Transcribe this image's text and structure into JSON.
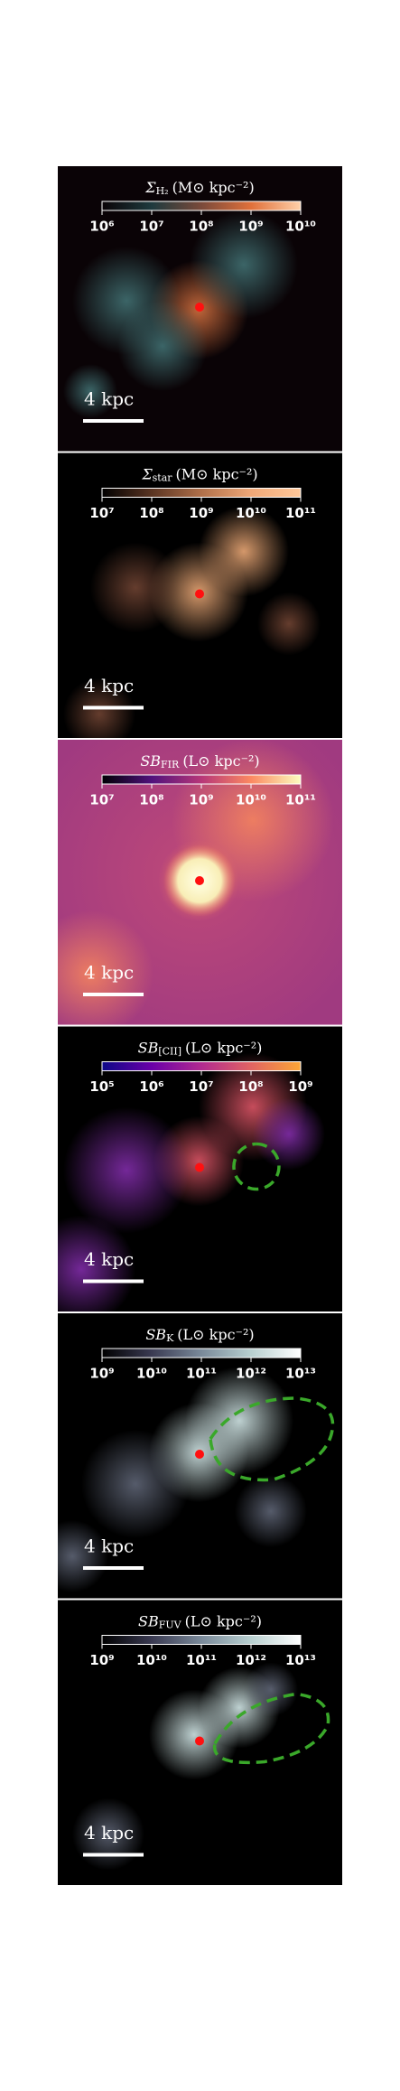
{
  "panels": [
    {
      "symbol": "Σ",
      "sub": "H₂",
      "unit": "(M⊙ kpc⁻²)",
      "ticks": [
        "10⁶",
        "10⁷",
        "10⁸",
        "10⁹",
        "10¹⁰"
      ],
      "scale": "4 kpc"
    },
    {
      "symbol": "Σ",
      "sub": "star",
      "unit": "(M⊙ kpc⁻²)",
      "ticks": [
        "10⁷",
        "10⁸",
        "10⁹",
        "10¹⁰",
        "10¹¹"
      ],
      "scale": "4 kpc"
    },
    {
      "symbol": "SB",
      "sub": "FIR",
      "unit": "(L⊙ kpc⁻²)",
      "ticks": [
        "10⁷",
        "10⁸",
        "10⁹",
        "10¹⁰",
        "10¹¹"
      ],
      "scale": "4 kpc"
    },
    {
      "symbol": "SB",
      "sub": "[CII]",
      "unit": "(L⊙ kpc⁻²)",
      "ticks": [
        "10⁵",
        "10⁶",
        "10⁷",
        "10⁸",
        "10⁹"
      ],
      "scale": "4 kpc"
    },
    {
      "symbol": "SB",
      "sub": "K",
      "unit": "(L⊙ kpc⁻²)",
      "ticks": [
        "10⁹",
        "10¹⁰",
        "10¹¹",
        "10¹²",
        "10¹³"
      ],
      "scale": "4 kpc"
    },
    {
      "symbol": "SB",
      "sub": "FUV",
      "unit": "(L⊙ kpc⁻²)",
      "ticks": [
        "10⁹",
        "10¹⁰",
        "10¹¹",
        "10¹²",
        "10¹³"
      ],
      "scale": "4 kpc"
    }
  ]
}
